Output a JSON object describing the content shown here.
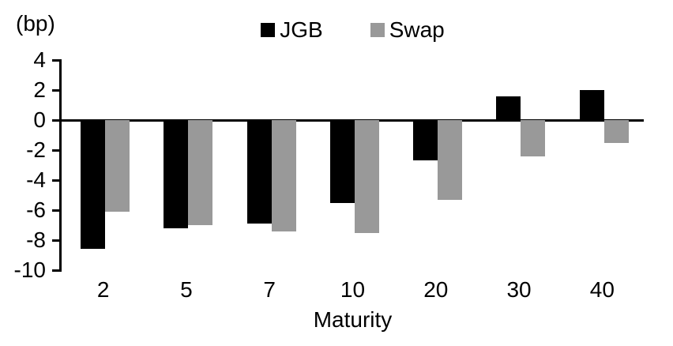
{
  "chart_data": {
    "type": "bar",
    "title": "",
    "unit_label": "(bp)",
    "xlabel": "Maturity",
    "ylabel": "(bp)",
    "categories": [
      "2",
      "5",
      "7",
      "10",
      "20",
      "30",
      "40"
    ],
    "series": [
      {
        "name": "JGB",
        "color": "#000000",
        "values": [
          -8.6,
          -7.2,
          -6.9,
          -5.5,
          -2.7,
          1.6,
          2.0
        ]
      },
      {
        "name": "Swap",
        "color": "#999999",
        "values": [
          -6.1,
          -7.0,
          -7.4,
          -7.5,
          -5.3,
          -2.4,
          -1.5
        ]
      }
    ],
    "ylim": [
      -10,
      4
    ],
    "yticks": [
      4,
      2,
      0,
      -2,
      -4,
      -6,
      -8,
      -10
    ],
    "grid": false,
    "legend_position": "top-center",
    "colors": {
      "axis": "#000000",
      "background": "#ffffff"
    }
  }
}
